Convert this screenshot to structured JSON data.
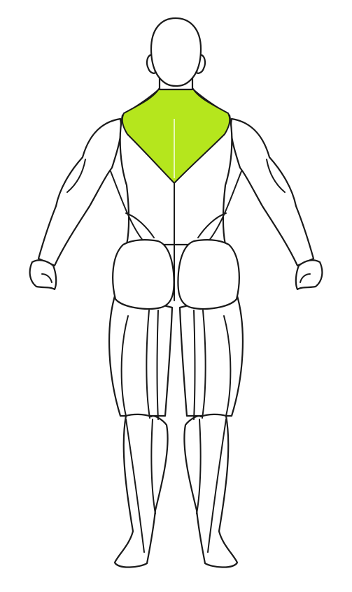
{
  "figure": {
    "view": "posterior",
    "highlighted_region": "upper-trapezius",
    "colors": {
      "outline": "#1a1a1a",
      "body_fill": "#ffffff",
      "highlight": "#b5e61d",
      "background": "#ffffff"
    }
  }
}
